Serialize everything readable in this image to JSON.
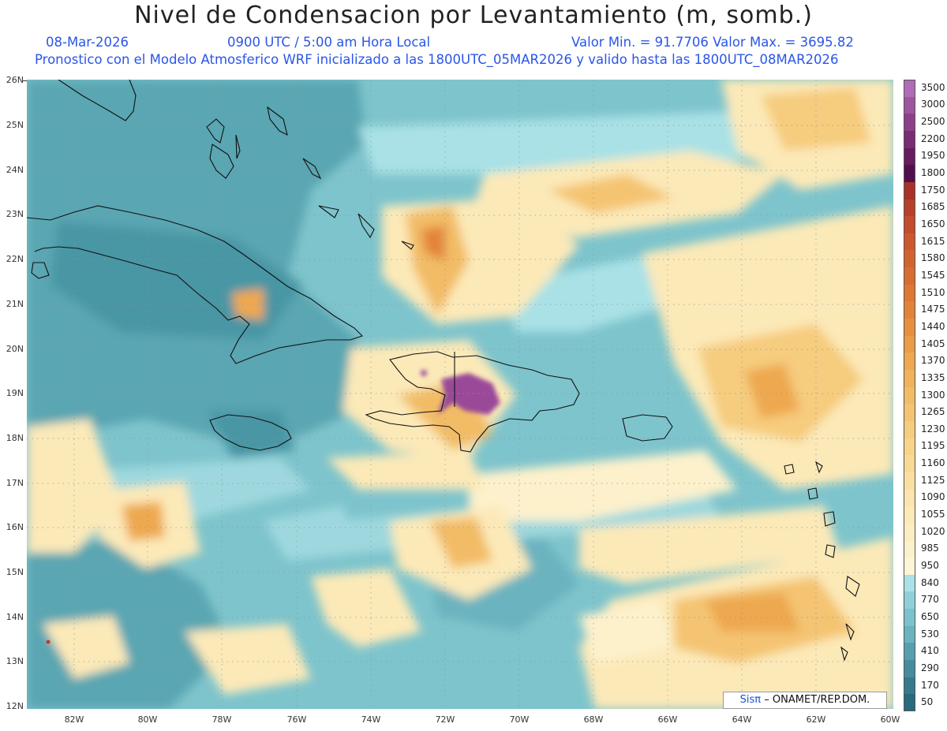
{
  "title": "Nivel de Condensacion por Levantamiento (m, somb.)",
  "date": "08-Mar-2026",
  "time": "0900 UTC / 5:00 am Hora Local",
  "minmax": "Valor Min. = 91.7706   Valor Max. = 3695.82",
  "model_line": "Pronostico con el Modelo Atmosferico WRF inicializado a las 1800UTC_05MAR2026 y valido hasta las  1800UTC_08MAR2026",
  "lat_labels": [
    "26N",
    "25N",
    "24N",
    "23N",
    "22N",
    "21N",
    "20N",
    "19N",
    "18N",
    "17N",
    "16N",
    "15N",
    "14N",
    "13N",
    "12N"
  ],
  "lon_labels": [
    "82W",
    "80W",
    "78W",
    "76W",
    "74W",
    "72W",
    "70W",
    "68W",
    "66W",
    "64W",
    "62W",
    "60W"
  ],
  "colorbar": {
    "labels": [
      "3500",
      "3000",
      "2500",
      "2200",
      "1950",
      "1800",
      "1750",
      "1685",
      "1650",
      "1615",
      "1580",
      "1545",
      "1510",
      "1475",
      "1440",
      "1405",
      "1370",
      "1335",
      "1300",
      "1265",
      "1230",
      "1195",
      "1160",
      "1125",
      "1090",
      "1055",
      "1020",
      "985",
      "950",
      "840",
      "770",
      "650",
      "530",
      "410",
      "290",
      "170",
      "50"
    ],
    "colors": [
      "#b06cb6",
      "#a0559f",
      "#8d3f8a",
      "#7a2c75",
      "#661c5f",
      "#52104a",
      "#a8322a",
      "#b6402a",
      "#c24c2c",
      "#cc582e",
      "#d26330",
      "#d86d32",
      "#de7834",
      "#e28438",
      "#e6903e",
      "#ea9c46",
      "#eea850",
      "#f0b25a",
      "#f2bc66",
      "#f4c472",
      "#f6cc7e",
      "#f8d38a",
      "#f9d996",
      "#fadfa2",
      "#fbe4ad",
      "#fce9b8",
      "#fcedc2",
      "#fdf1cc",
      "#fdf5d6",
      "#a9e1e6",
      "#8fd0d8",
      "#7cc2cc",
      "#6ab3bf",
      "#589fae",
      "#468c9c",
      "#367a8c",
      "#276a7e"
    ]
  },
  "credit_brand": "Sisπ",
  "credit_text": "– ONAMET/REP.DOM."
}
